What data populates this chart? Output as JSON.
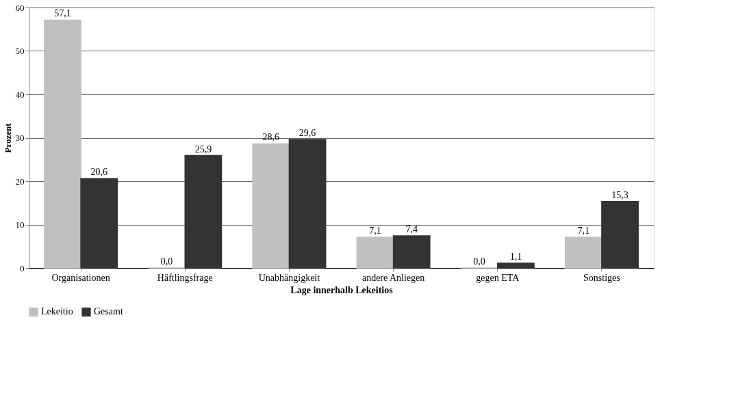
{
  "chart_data": {
    "type": "bar",
    "xlabel": "Lage innerhalb Lekeitios",
    "ylabel": "Prozent",
    "categories": [
      "Organisationen",
      "Häftlingsfrage",
      "Unabhängigkeit",
      "andere Anliegen",
      "gegen ETA",
      "Sonstiges"
    ],
    "series": [
      {
        "name": "Lekeitio",
        "color": "#c0c0c0",
        "values": [
          57.1,
          0.0,
          28.6,
          7.1,
          0.0,
          7.1
        ],
        "value_labels": [
          "57,1",
          "0,0",
          "28,6",
          "7,1",
          "0,0",
          "7,1"
        ]
      },
      {
        "name": "Gesamt",
        "color": "#333333",
        "values": [
          20.6,
          25.9,
          29.6,
          7.4,
          1.1,
          15.3
        ],
        "value_labels": [
          "20,6",
          "25,9",
          "29,6",
          "7,4",
          "1,1",
          "15,3"
        ]
      }
    ],
    "ylim": [
      0,
      60
    ],
    "yticks": [
      0,
      10,
      20,
      30,
      40,
      50,
      60
    ],
    "grid": "y",
    "legend": "bottom"
  }
}
